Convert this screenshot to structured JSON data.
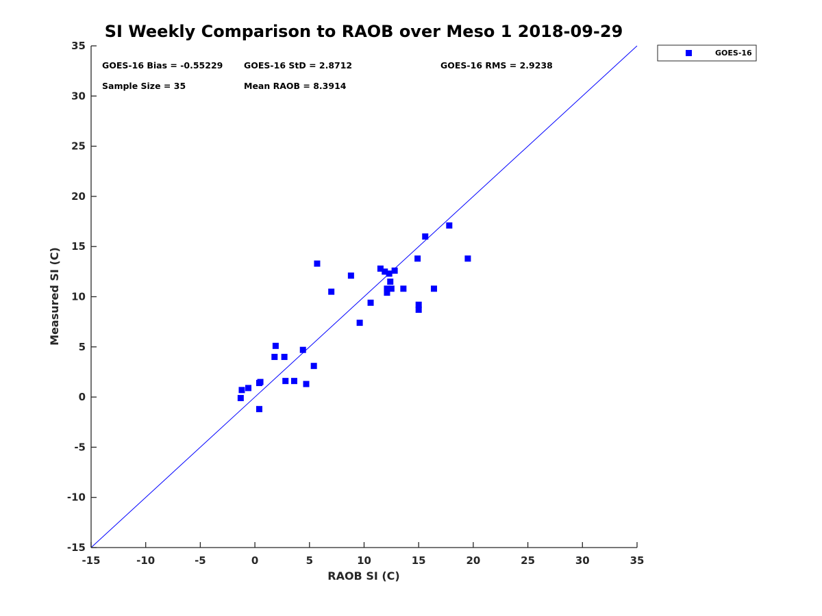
{
  "chart_data": {
    "type": "scatter",
    "title": "SI Weekly Comparison to RAOB over Meso 1 2018-09-29",
    "xlabel": "RAOB SI (C)",
    "ylabel": "Measured SI (C)",
    "xlim": [
      -15,
      35
    ],
    "ylim": [
      -15,
      35
    ],
    "xticks": [
      "-15",
      "-10",
      "-5",
      "0",
      "5",
      "10",
      "15",
      "20",
      "25",
      "30",
      "35"
    ],
    "yticks": [
      "-15",
      "-10",
      "-5",
      "0",
      "5",
      "10",
      "15",
      "20",
      "25",
      "30",
      "35"
    ],
    "legend": {
      "location": "top-right, outside axes",
      "entries": [
        "GOES-16"
      ]
    },
    "reference_line": {
      "label": "1:1",
      "x": [
        -15,
        35
      ],
      "y": [
        -15,
        35
      ],
      "color": "#0000ff"
    },
    "stats": {
      "bias": "GOES-16 Bias = -0.55229",
      "std": "GOES-16 StD = 2.8712",
      "rms": "GOES-16 RMS = 2.9238",
      "sample": "Sample Size = 35",
      "mean": "Mean RAOB = 8.3914"
    },
    "series": [
      {
        "name": "GOES-16",
        "color": "#0000ff",
        "marker": "square",
        "points": [
          [
            -1.3,
            -0.1
          ],
          [
            -1.2,
            0.7
          ],
          [
            -0.6,
            0.9
          ],
          [
            0.4,
            -1.2
          ],
          [
            0.4,
            1.4
          ],
          [
            0.5,
            1.5
          ],
          [
            1.8,
            4.0
          ],
          [
            1.9,
            5.1
          ],
          [
            2.7,
            4.0
          ],
          [
            2.8,
            1.6
          ],
          [
            3.6,
            1.6
          ],
          [
            4.4,
            4.7
          ],
          [
            4.7,
            1.3
          ],
          [
            5.4,
            3.1
          ],
          [
            5.7,
            13.3
          ],
          [
            7.0,
            10.5
          ],
          [
            8.8,
            12.1
          ],
          [
            9.6,
            7.4
          ],
          [
            10.6,
            9.4
          ],
          [
            11.5,
            12.8
          ],
          [
            11.9,
            12.5
          ],
          [
            12.1,
            10.4
          ],
          [
            12.1,
            10.8
          ],
          [
            12.3,
            12.3
          ],
          [
            12.4,
            11.5
          ],
          [
            12.5,
            10.8
          ],
          [
            12.8,
            12.6
          ],
          [
            13.6,
            10.8
          ],
          [
            14.9,
            13.8
          ],
          [
            15.0,
            8.7
          ],
          [
            15.0,
            9.2
          ],
          [
            15.6,
            16.0
          ],
          [
            16.4,
            10.8
          ],
          [
            17.8,
            17.1
          ],
          [
            19.5,
            13.8
          ]
        ]
      }
    ]
  }
}
